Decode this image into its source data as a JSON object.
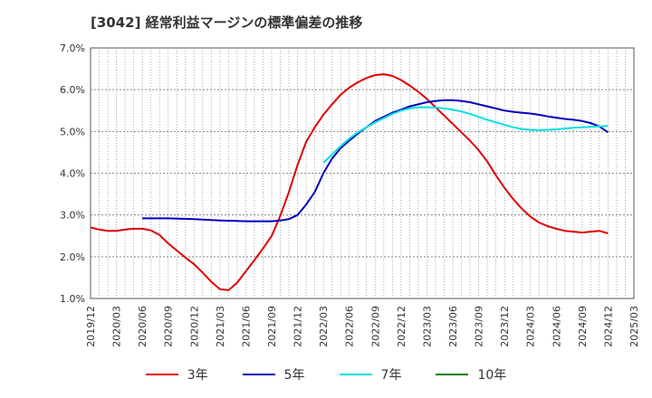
{
  "title": "[3042]  経常利益マージンの標準偏差の推移",
  "chart_data": {
    "type": "line",
    "title": "[3042]  経常利益マージンの標準偏差の推移",
    "ylim": [
      1.0,
      7.0
    ],
    "yticks": [
      "1.0%",
      "2.0%",
      "3.0%",
      "4.0%",
      "5.0%",
      "6.0%",
      "7.0%"
    ],
    "xticks": [
      "2019/12",
      "2020/03",
      "2020/06",
      "2020/09",
      "2020/12",
      "2021/03",
      "2021/06",
      "2021/09",
      "2021/12",
      "2022/03",
      "2022/06",
      "2022/09",
      "2022/12",
      "2023/03",
      "2023/06",
      "2023/09",
      "2023/12",
      "2024/03",
      "2024/06",
      "2024/09",
      "2024/12",
      "2025/03"
    ],
    "grid": true,
    "legend_position": "bottom",
    "series": [
      {
        "name": "3年",
        "color": "#e00000",
        "x": [
          "2019/12",
          "2020/01",
          "2020/02",
          "2020/03",
          "2020/04",
          "2020/05",
          "2020/06",
          "2020/07",
          "2020/08",
          "2020/09",
          "2020/10",
          "2020/11",
          "2020/12",
          "2021/01",
          "2021/02",
          "2021/03",
          "2021/04",
          "2021/05",
          "2021/06",
          "2021/07",
          "2021/08",
          "2021/09",
          "2021/10",
          "2021/11",
          "2021/12",
          "2022/01",
          "2022/02",
          "2022/03",
          "2022/04",
          "2022/05",
          "2022/06",
          "2022/07",
          "2022/08",
          "2022/09",
          "2022/10",
          "2022/11",
          "2022/12",
          "2023/01",
          "2023/02",
          "2023/03",
          "2023/04",
          "2023/05",
          "2023/06",
          "2023/07",
          "2023/08",
          "2023/09",
          "2023/10",
          "2023/11",
          "2023/12",
          "2024/01",
          "2024/02",
          "2024/03",
          "2024/04",
          "2024/05",
          "2024/06",
          "2024/07",
          "2024/08",
          "2024/09",
          "2024/10",
          "2024/11",
          "2024/12"
        ],
        "values": [
          2.7,
          2.65,
          2.62,
          2.62,
          2.65,
          2.67,
          2.67,
          2.63,
          2.52,
          2.32,
          2.15,
          1.98,
          1.82,
          1.62,
          1.4,
          1.22,
          1.2,
          1.38,
          1.65,
          1.92,
          2.2,
          2.5,
          2.98,
          3.55,
          4.2,
          4.75,
          5.1,
          5.4,
          5.65,
          5.88,
          6.05,
          6.18,
          6.28,
          6.35,
          6.37,
          6.33,
          6.23,
          6.1,
          5.95,
          5.78,
          5.58,
          5.38,
          5.18,
          4.98,
          4.78,
          4.55,
          4.28,
          3.95,
          3.65,
          3.38,
          3.15,
          2.96,
          2.82,
          2.73,
          2.67,
          2.62,
          2.6,
          2.58,
          2.6,
          2.62,
          2.56
        ]
      },
      {
        "name": "5年",
        "color": "#0000c0",
        "x": [
          "2020/06",
          "2020/09",
          "2020/12",
          "2021/03",
          "2021/06",
          "2021/09",
          "2021/10",
          "2021/11",
          "2021/12",
          "2022/01",
          "2022/02",
          "2022/03",
          "2022/04",
          "2022/05",
          "2022/06",
          "2022/07",
          "2022/08",
          "2022/09",
          "2022/10",
          "2022/11",
          "2022/12",
          "2023/01",
          "2023/02",
          "2023/03",
          "2023/04",
          "2023/05",
          "2023/06",
          "2023/07",
          "2023/08",
          "2023/09",
          "2023/10",
          "2023/11",
          "2023/12",
          "2024/01",
          "2024/02",
          "2024/03",
          "2024/04",
          "2024/05",
          "2024/06",
          "2024/07",
          "2024/08",
          "2024/09",
          "2024/10",
          "2024/11",
          "2024/12"
        ],
        "values": [
          2.92,
          2.92,
          2.9,
          2.87,
          2.85,
          2.85,
          2.87,
          2.9,
          3.0,
          3.25,
          3.55,
          4.0,
          4.35,
          4.6,
          4.78,
          4.95,
          5.1,
          5.25,
          5.35,
          5.45,
          5.52,
          5.6,
          5.65,
          5.7,
          5.73,
          5.75,
          5.75,
          5.73,
          5.7,
          5.65,
          5.6,
          5.55,
          5.5,
          5.47,
          5.45,
          5.43,
          5.4,
          5.36,
          5.33,
          5.3,
          5.28,
          5.25,
          5.2,
          5.12,
          4.98
        ]
      },
      {
        "name": "7年",
        "color": "#00e0e0",
        "x": [
          "2022/03",
          "2022/04",
          "2022/05",
          "2022/06",
          "2022/07",
          "2022/08",
          "2022/09",
          "2022/10",
          "2022/11",
          "2022/12",
          "2023/01",
          "2023/02",
          "2023/03",
          "2023/04",
          "2023/05",
          "2023/06",
          "2023/07",
          "2023/08",
          "2023/09",
          "2023/10",
          "2023/11",
          "2023/12",
          "2024/01",
          "2024/02",
          "2024/03",
          "2024/04",
          "2024/05",
          "2024/06",
          "2024/07",
          "2024/08",
          "2024/09",
          "2024/10",
          "2024/11",
          "2024/12"
        ],
        "values": [
          4.25,
          4.45,
          4.65,
          4.83,
          4.98,
          5.1,
          5.22,
          5.32,
          5.42,
          5.5,
          5.55,
          5.58,
          5.58,
          5.57,
          5.55,
          5.52,
          5.48,
          5.42,
          5.35,
          5.28,
          5.22,
          5.16,
          5.1,
          5.06,
          5.04,
          5.03,
          5.04,
          5.05,
          5.07,
          5.09,
          5.1,
          5.11,
          5.12,
          5.13
        ]
      },
      {
        "name": "10年",
        "color": "#008000",
        "x": [],
        "values": []
      }
    ]
  }
}
